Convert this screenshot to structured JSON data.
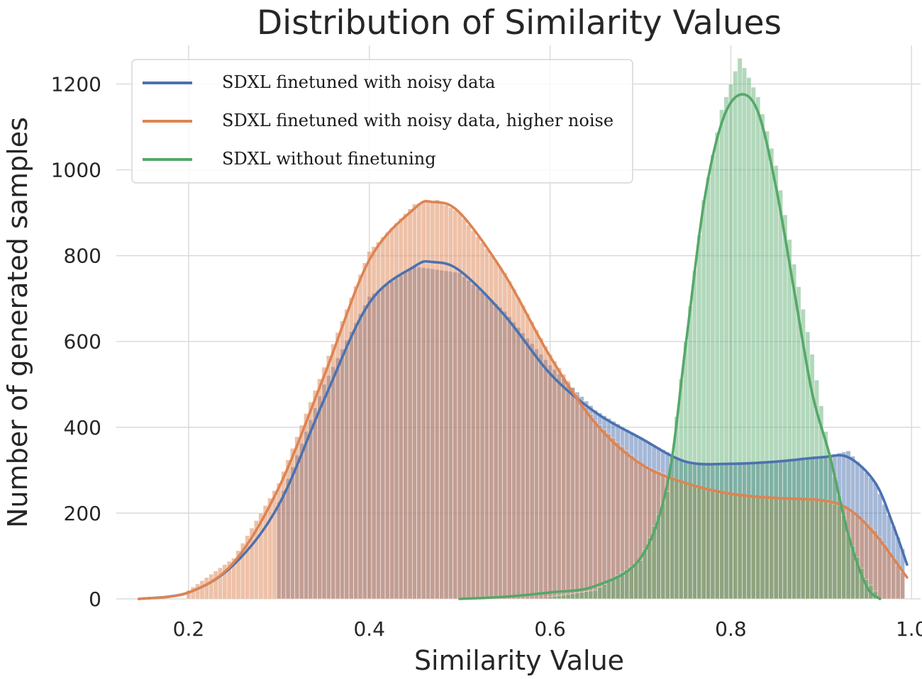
{
  "chart_data": {
    "type": "bar",
    "title": "Distribution of Similarity Values",
    "xlabel": "Similarity Value",
    "ylabel": "Number of generated samples",
    "xlim": [
      0.12,
      1.01
    ],
    "ylim": [
      0,
      1290
    ],
    "xticks": [
      0.2,
      0.4,
      0.6,
      0.8,
      1.0
    ],
    "xtick_labels": [
      "0.2",
      "0.4",
      "0.6",
      "0.8",
      "1.0"
    ],
    "yticks": [
      0,
      200,
      400,
      600,
      800,
      1000,
      1200
    ],
    "ytick_labels": [
      "0",
      "200",
      "400",
      "600",
      "800",
      "1000",
      "1200"
    ],
    "grid": true,
    "legend_position": "top-left",
    "bin_width": 0.005,
    "series": [
      {
        "name": "SDXL finetuned with noisy data",
        "color": "#4c72b0",
        "histogram": [
          {
            "x": 0.3,
            "y": 225
          },
          {
            "x": 0.35,
            "y": 500
          },
          {
            "x": 0.4,
            "y": 705
          },
          {
            "x": 0.45,
            "y": 775
          },
          {
            "x": 0.5,
            "y": 760
          },
          {
            "x": 0.55,
            "y": 670
          },
          {
            "x": 0.6,
            "y": 545
          },
          {
            "x": 0.65,
            "y": 440
          },
          {
            "x": 0.7,
            "y": 375
          },
          {
            "x": 0.75,
            "y": 320
          },
          {
            "x": 0.8,
            "y": 315
          },
          {
            "x": 0.85,
            "y": 320
          },
          {
            "x": 0.9,
            "y": 330
          },
          {
            "x": 0.93,
            "y": 345
          },
          {
            "x": 0.96,
            "y": 270
          },
          {
            "x": 0.98,
            "y": 170
          },
          {
            "x": 0.995,
            "y": 90
          }
        ],
        "kde": [
          {
            "x": 0.145,
            "y": 0
          },
          {
            "x": 0.2,
            "y": 15
          },
          {
            "x": 0.25,
            "y": 80
          },
          {
            "x": 0.3,
            "y": 220
          },
          {
            "x": 0.35,
            "y": 465
          },
          {
            "x": 0.4,
            "y": 690
          },
          {
            "x": 0.45,
            "y": 775
          },
          {
            "x": 0.47,
            "y": 785
          },
          {
            "x": 0.5,
            "y": 765
          },
          {
            "x": 0.55,
            "y": 660
          },
          {
            "x": 0.6,
            "y": 525
          },
          {
            "x": 0.65,
            "y": 435
          },
          {
            "x": 0.7,
            "y": 375
          },
          {
            "x": 0.75,
            "y": 320
          },
          {
            "x": 0.8,
            "y": 315
          },
          {
            "x": 0.85,
            "y": 320
          },
          {
            "x": 0.9,
            "y": 330
          },
          {
            "x": 0.93,
            "y": 330
          },
          {
            "x": 0.96,
            "y": 270
          },
          {
            "x": 0.98,
            "y": 170
          },
          {
            "x": 0.995,
            "y": 80
          }
        ]
      },
      {
        "name": "SDXL finetuned with noisy data, higher noise",
        "color": "#dd8452",
        "histogram": [
          {
            "x": 0.2,
            "y": 20
          },
          {
            "x": 0.25,
            "y": 95
          },
          {
            "x": 0.3,
            "y": 270
          },
          {
            "x": 0.35,
            "y": 540
          },
          {
            "x": 0.4,
            "y": 810
          },
          {
            "x": 0.45,
            "y": 920
          },
          {
            "x": 0.475,
            "y": 930
          },
          {
            "x": 0.5,
            "y": 900
          },
          {
            "x": 0.55,
            "y": 760
          },
          {
            "x": 0.6,
            "y": 570
          },
          {
            "x": 0.65,
            "y": 415
          },
          {
            "x": 0.7,
            "y": 315
          },
          {
            "x": 0.75,
            "y": 270
          },
          {
            "x": 0.8,
            "y": 245
          },
          {
            "x": 0.85,
            "y": 235
          },
          {
            "x": 0.9,
            "y": 230
          },
          {
            "x": 0.93,
            "y": 210
          },
          {
            "x": 0.96,
            "y": 160
          },
          {
            "x": 0.98,
            "y": 95
          },
          {
            "x": 0.995,
            "y": 45
          }
        ],
        "kde": [
          {
            "x": 0.145,
            "y": 0
          },
          {
            "x": 0.2,
            "y": 15
          },
          {
            "x": 0.25,
            "y": 85
          },
          {
            "x": 0.3,
            "y": 260
          },
          {
            "x": 0.35,
            "y": 520
          },
          {
            "x": 0.4,
            "y": 790
          },
          {
            "x": 0.45,
            "y": 910
          },
          {
            "x": 0.47,
            "y": 925
          },
          {
            "x": 0.5,
            "y": 900
          },
          {
            "x": 0.55,
            "y": 755
          },
          {
            "x": 0.6,
            "y": 565
          },
          {
            "x": 0.65,
            "y": 410
          },
          {
            "x": 0.7,
            "y": 315
          },
          {
            "x": 0.75,
            "y": 270
          },
          {
            "x": 0.8,
            "y": 245
          },
          {
            "x": 0.85,
            "y": 235
          },
          {
            "x": 0.9,
            "y": 230
          },
          {
            "x": 0.93,
            "y": 210
          },
          {
            "x": 0.96,
            "y": 150
          },
          {
            "x": 0.995,
            "y": 50
          }
        ]
      },
      {
        "name": "SDXL without finetuning",
        "color": "#55a868",
        "histogram": [
          {
            "x": 0.6,
            "y": 5
          },
          {
            "x": 0.65,
            "y": 20
          },
          {
            "x": 0.7,
            "y": 90
          },
          {
            "x": 0.73,
            "y": 250
          },
          {
            "x": 0.75,
            "y": 600
          },
          {
            "x": 0.77,
            "y": 930
          },
          {
            "x": 0.79,
            "y": 1140
          },
          {
            "x": 0.81,
            "y": 1260
          },
          {
            "x": 0.83,
            "y": 1170
          },
          {
            "x": 0.85,
            "y": 1010
          },
          {
            "x": 0.87,
            "y": 780
          },
          {
            "x": 0.89,
            "y": 570
          },
          {
            "x": 0.91,
            "y": 330
          },
          {
            "x": 0.93,
            "y": 150
          },
          {
            "x": 0.95,
            "y": 45
          },
          {
            "x": 0.965,
            "y": 5
          }
        ],
        "kde": [
          {
            "x": 0.5,
            "y": 0
          },
          {
            "x": 0.55,
            "y": 5
          },
          {
            "x": 0.6,
            "y": 15
          },
          {
            "x": 0.65,
            "y": 30
          },
          {
            "x": 0.7,
            "y": 95
          },
          {
            "x": 0.73,
            "y": 270
          },
          {
            "x": 0.75,
            "y": 590
          },
          {
            "x": 0.77,
            "y": 920
          },
          {
            "x": 0.79,
            "y": 1110
          },
          {
            "x": 0.81,
            "y": 1175
          },
          {
            "x": 0.83,
            "y": 1135
          },
          {
            "x": 0.85,
            "y": 960
          },
          {
            "x": 0.87,
            "y": 720
          },
          {
            "x": 0.89,
            "y": 480
          },
          {
            "x": 0.91,
            "y": 330
          },
          {
            "x": 0.93,
            "y": 150
          },
          {
            "x": 0.95,
            "y": 30
          },
          {
            "x": 0.965,
            "y": 0
          }
        ]
      }
    ]
  }
}
